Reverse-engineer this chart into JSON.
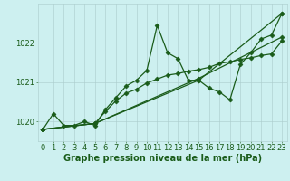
{
  "xlabel": "Graphe pression niveau de la mer (hPa)",
  "ylabel": "",
  "bg_color": "#cdf0f0",
  "plot_bg_color": "#cdf0f0",
  "grid_color": "#aacccc",
  "line_color": "#1a5c1a",
  "text_color": "#1a5c1a",
  "xlim": [
    -0.5,
    23.5
  ],
  "ylim": [
    1019.5,
    1023.0
  ],
  "yticks": [
    1020,
    1021,
    1022
  ],
  "xticks": [
    0,
    1,
    2,
    3,
    4,
    5,
    6,
    7,
    8,
    9,
    10,
    11,
    12,
    13,
    14,
    15,
    16,
    17,
    18,
    19,
    20,
    21,
    22,
    23
  ],
  "lines": [
    {
      "x": [
        0,
        1,
        2,
        3,
        4,
        5,
        6,
        7,
        8,
        9,
        10,
        11,
        12,
        13,
        14,
        15,
        16,
        17,
        18,
        19,
        20,
        21,
        22,
        23
      ],
      "y": [
        1019.8,
        1020.2,
        1019.9,
        1019.9,
        1020.0,
        1019.9,
        1020.3,
        1020.6,
        1020.9,
        1021.05,
        1021.3,
        1022.45,
        1021.75,
        1021.6,
        1021.05,
        1021.05,
        1020.85,
        1020.75,
        1020.55,
        1021.45,
        1021.75,
        1022.1,
        1022.2,
        1022.75
      ]
    },
    {
      "x": [
        0,
        5,
        15,
        23
      ],
      "y": [
        1019.8,
        1019.95,
        1021.05,
        1022.75
      ]
    },
    {
      "x": [
        0,
        5,
        15,
        23
      ],
      "y": [
        1019.8,
        1019.95,
        1021.1,
        1022.15
      ]
    },
    {
      "x": [
        0,
        5,
        6,
        7,
        8,
        9,
        10,
        11,
        12,
        13,
        14,
        15,
        16,
        17,
        18,
        19,
        20,
        21,
        22,
        23
      ],
      "y": [
        1019.8,
        1019.95,
        1020.25,
        1020.52,
        1020.72,
        1020.82,
        1020.98,
        1021.08,
        1021.18,
        1021.22,
        1021.28,
        1021.32,
        1021.38,
        1021.48,
        1021.52,
        1021.58,
        1021.62,
        1021.68,
        1021.72,
        1022.05
      ]
    }
  ],
  "marker": "D",
  "markersize": 2.5,
  "linewidth": 0.9,
  "xlabel_fontsize": 7,
  "tick_fontsize": 6,
  "dpi": 100,
  "figsize": [
    3.2,
    2.0
  ]
}
